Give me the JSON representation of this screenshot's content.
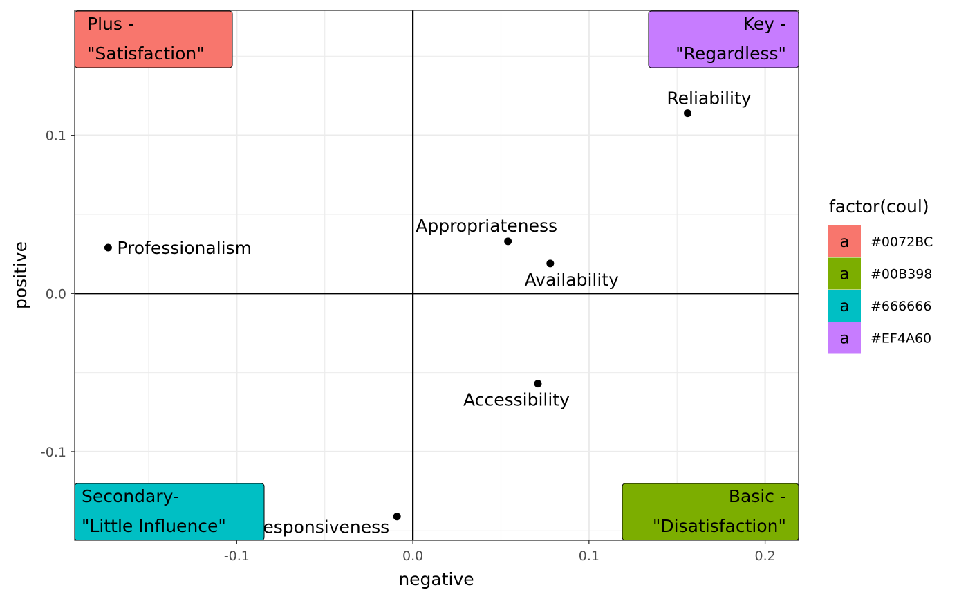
{
  "chart_data": {
    "type": "scatter",
    "title": "",
    "xlabel": "negative",
    "ylabel": "positive",
    "xlim": [
      -0.192,
      0.219
    ],
    "ylim": [
      -0.156,
      0.179
    ],
    "x_ticks": [
      -0.1,
      0.0,
      0.1,
      0.2
    ],
    "x_tick_labels": [
      "-0.1",
      "0.0",
      "0.1",
      "0.2"
    ],
    "y_ticks": [
      -0.1,
      0.0,
      0.1
    ],
    "y_tick_labels": [
      "-0.1",
      "0.0",
      "0.1"
    ],
    "grid": true,
    "reference_lines": {
      "x": 0.0,
      "y": 0.0
    },
    "points": [
      {
        "label": "Professionalism",
        "x": -0.173,
        "y": 0.029
      },
      {
        "label": "Appropriateness",
        "x": 0.054,
        "y": 0.033
      },
      {
        "label": "Availability",
        "x": 0.078,
        "y": 0.019
      },
      {
        "label": "Reliability",
        "x": 0.156,
        "y": 0.114
      },
      {
        "label": "Accessibility",
        "x": 0.071,
        "y": -0.057
      },
      {
        "label": "Responsiveness",
        "x": -0.009,
        "y": -0.141
      }
    ],
    "quadrant_labels": [
      {
        "line1": "Plus -",
        "line2": "\"Satisfaction\"",
        "corner": "top-left",
        "color": "#F8766D"
      },
      {
        "line1": "Key -",
        "line2": "\"Regardless\"",
        "corner": "top-right",
        "color": "#C77CFF"
      },
      {
        "line1": "Secondary-",
        "line2": "\"Little Influence\"",
        "corner": "bottom-left",
        "color": "#00BFC4"
      },
      {
        "line1": "Basic -",
        "line2": "\"Disatisfaction\"",
        "corner": "bottom-right",
        "color": "#7CAE00"
      }
    ],
    "legend": {
      "title": "factor(coul)",
      "placement": "right",
      "key_text": "a",
      "entries": [
        {
          "label": "#0072BC",
          "color": "#F8766D"
        },
        {
          "label": "#00B398",
          "color": "#7CAE00"
        },
        {
          "label": "#666666",
          "color": "#00BFC4"
        },
        {
          "label": "#EF4A60",
          "color": "#C77CFF"
        }
      ]
    }
  }
}
